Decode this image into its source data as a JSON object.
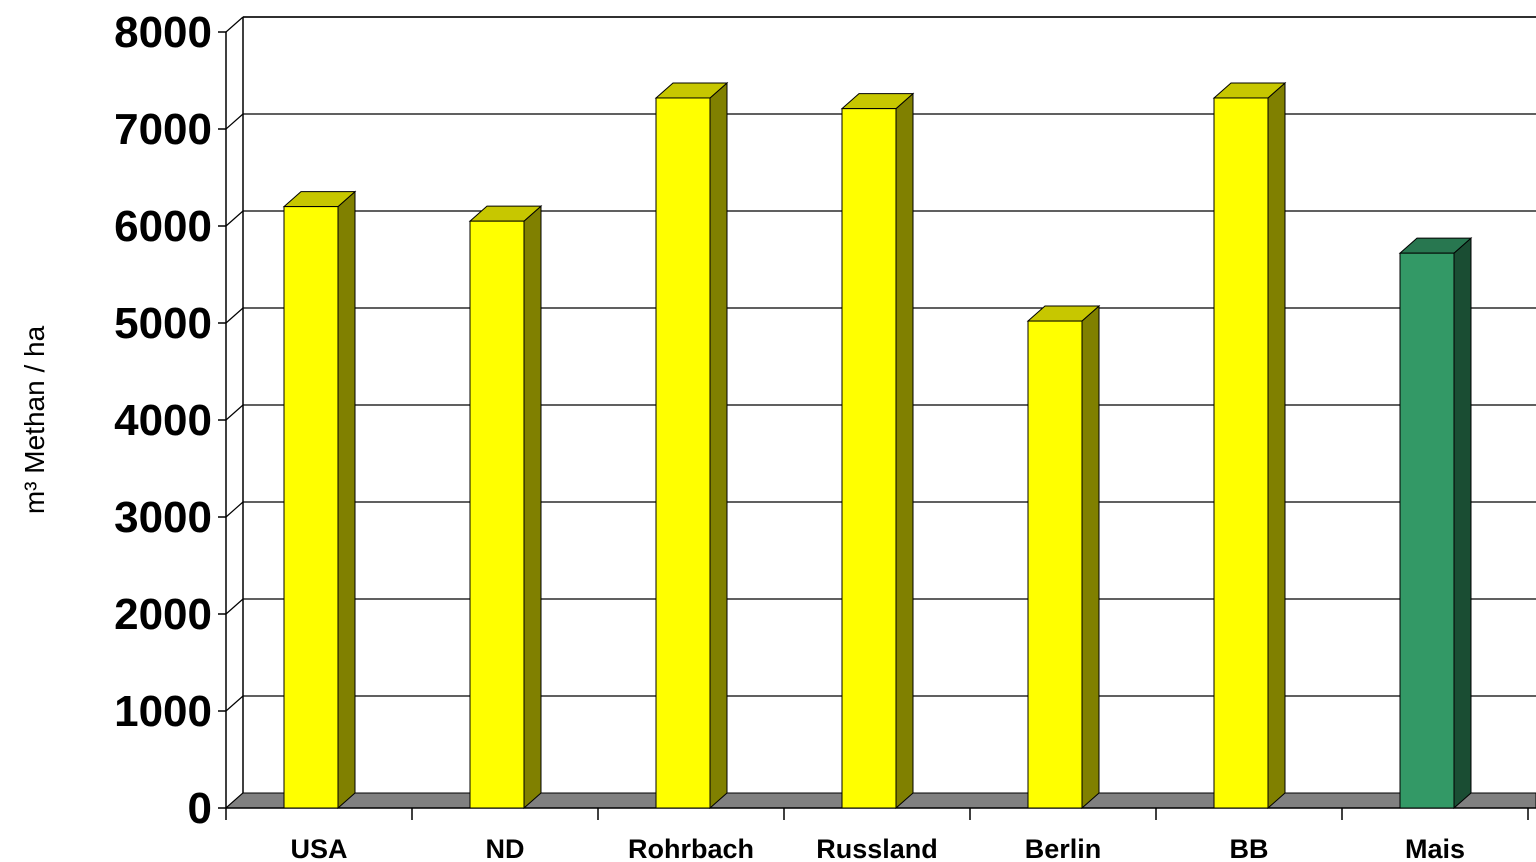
{
  "chart_data": {
    "type": "bar",
    "title": "",
    "xlabel": "",
    "ylabel": "m³ Methan / ha",
    "ylim": [
      0,
      8000
    ],
    "yticks": [
      0,
      1000,
      2000,
      3000,
      4000,
      5000,
      6000,
      7000,
      8000
    ],
    "grid": true,
    "style": "3d",
    "categories": [
      "USA",
      "ND",
      "Rohrbach",
      "Russland",
      "Berlin",
      "BB",
      "Mais"
    ],
    "values": [
      6200,
      6050,
      7320,
      7210,
      5020,
      7320,
      5720
    ],
    "colors": [
      "#FFFF00",
      "#FFFF00",
      "#FFFF00",
      "#FFFF00",
      "#FFFF00",
      "#FFFF00",
      "#339966"
    ],
    "floor_color": "#808080"
  }
}
